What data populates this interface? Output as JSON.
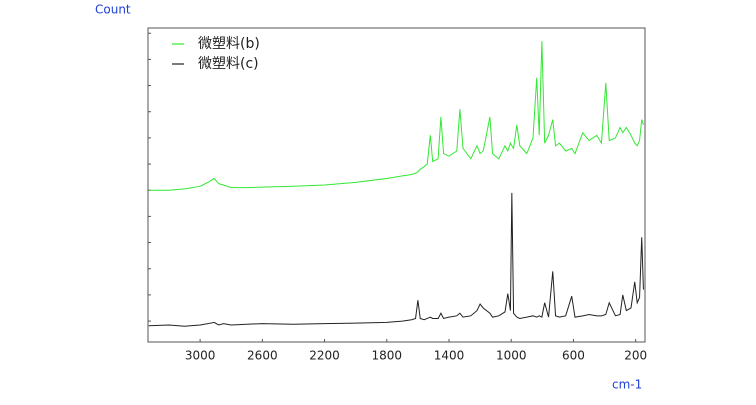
{
  "chart_data": {
    "type": "line",
    "x_title": "cm-1",
    "y_title": "Count",
    "x": [
      3330,
      3200,
      3100,
      3000,
      2950,
      2910,
      2880,
      2850,
      2800,
      2700,
      2600,
      2400,
      2200,
      2000,
      1800,
      1700,
      1640,
      1615,
      1600,
      1585,
      1560,
      1540,
      1520,
      1505,
      1470,
      1452,
      1435,
      1400,
      1350,
      1330,
      1310,
      1260,
      1220,
      1200,
      1180,
      1137,
      1120,
      1080,
      1040,
      1022,
      1005,
      996,
      985,
      964,
      945,
      900,
      860,
      836,
      820,
      803,
      785,
      760,
      733,
      715,
      690,
      650,
      611,
      590,
      540,
      500,
      450,
      420,
      392,
      370,
      330,
      300,
      283,
      260,
      230,
      206,
      190,
      175,
      161,
      150
    ],
    "series": [
      {
        "name": "微塑料(b)",
        "color": "#33e833",
        "values": [
          5.8,
          5.8,
          5.85,
          5.95,
          6.1,
          6.25,
          6.05,
          6.0,
          5.9,
          5.9,
          5.92,
          5.95,
          6.0,
          6.1,
          6.25,
          6.35,
          6.4,
          6.45,
          6.5,
          6.6,
          6.7,
          6.8,
          7.9,
          6.9,
          7.0,
          8.6,
          7.2,
          7.1,
          7.3,
          8.9,
          7.4,
          7.0,
          7.5,
          7.2,
          7.3,
          8.6,
          7.2,
          7.0,
          7.5,
          7.3,
          7.6,
          7.5,
          7.4,
          8.3,
          7.5,
          7.2,
          7.8,
          10.1,
          7.9,
          11.5,
          7.6,
          7.9,
          8.5,
          7.5,
          7.6,
          7.3,
          7.4,
          7.2,
          8.0,
          7.7,
          7.9,
          7.6,
          9.9,
          7.7,
          7.8,
          8.2,
          8.0,
          8.2,
          7.9,
          7.6,
          7.5,
          7.7,
          8.5,
          8.3
        ]
      },
      {
        "name": "微塑料(c)",
        "color": "#222222",
        "values": [
          0.62,
          0.65,
          0.6,
          0.65,
          0.7,
          0.75,
          0.65,
          0.7,
          0.65,
          0.68,
          0.7,
          0.68,
          0.7,
          0.72,
          0.75,
          0.8,
          0.85,
          0.9,
          1.6,
          0.9,
          0.85,
          0.9,
          0.95,
          0.9,
          0.9,
          1.1,
          0.9,
          0.95,
          1.0,
          1.1,
          0.95,
          1.0,
          1.2,
          1.45,
          1.3,
          1.1,
          0.95,
          1.0,
          1.15,
          1.85,
          1.2,
          5.7,
          1.1,
          0.95,
          0.9,
          0.95,
          1.0,
          0.95,
          1.0,
          0.95,
          1.5,
          0.95,
          2.7,
          1.0,
          0.95,
          1.0,
          1.75,
          0.95,
          1.0,
          1.05,
          1.0,
          1.0,
          1.05,
          1.5,
          1.0,
          1.05,
          1.8,
          1.2,
          1.3,
          2.3,
          1.5,
          1.7,
          4.0,
          2.0
        ]
      }
    ],
    "xlim": [
      3335,
      140
    ],
    "xticks": [
      3000,
      2600,
      2200,
      1800,
      1400,
      1000,
      600,
      200
    ],
    "ylim": [
      0,
      12
    ],
    "yticks": [
      0.8,
      1.8,
      2.8,
      3.8,
      4.8,
      5.8,
      6.8,
      7.8,
      8.8,
      9.8,
      10.8,
      11.8
    ],
    "legend": "top-left"
  }
}
